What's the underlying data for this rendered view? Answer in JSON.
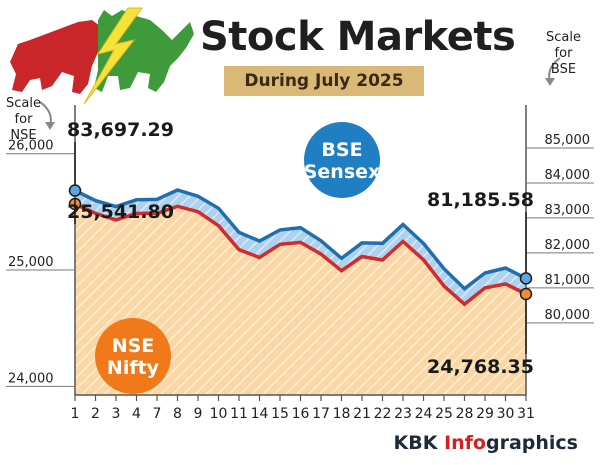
{
  "title": "Stock Markets",
  "subtitle": "During July 2025",
  "scale_notes": {
    "nse": [
      "Scale",
      "for",
      "NSE"
    ],
    "bse": [
      "Scale",
      "for",
      "BSE"
    ]
  },
  "footer": {
    "brand": "KBK",
    "accent": "Info",
    "rest": "graphics"
  },
  "colors": {
    "bse_line": "#1f6fae",
    "bse_fill": "#aed1ee",
    "nse_line": "#d42a2a",
    "nse_fill": "#fad8a6",
    "bse_badge": "#1f7fc2",
    "nse_badge": "#f07a1a"
  },
  "chart_data": {
    "type": "area",
    "x": [
      "1",
      "2",
      "3",
      "4",
      "7",
      "8",
      "9",
      "10",
      "11",
      "14",
      "15",
      "16",
      "17",
      "18",
      "21",
      "22",
      "23",
      "24",
      "25",
      "28",
      "29",
      "30",
      "31"
    ],
    "xlabel": "",
    "axes": {
      "left": {
        "label": "Scale for NSE",
        "ticks": [
          24000,
          25000,
          26000
        ],
        "tick_labels": [
          "24,000",
          "25,000",
          "26,000"
        ],
        "range": [
          23900,
          26350
        ]
      },
      "right": {
        "label": "Scale for BSE",
        "ticks": [
          80000,
          81000,
          82000,
          83000,
          84000,
          85000
        ],
        "tick_labels": [
          "80,000",
          "81,000",
          "82,000",
          "83,000",
          "84,000",
          "85,000"
        ],
        "range": [
          77850,
          86000
        ]
      }
    },
    "series": [
      {
        "name": "BSE Sensex",
        "axis": "right",
        "values": [
          83697.29,
          83409.69,
          83239.47,
          83432.89,
          83442.5,
          83712.51,
          83536.08,
          83190.28,
          82500.47,
          82253.46,
          82570.91,
          82634.48,
          82259.24,
          81757.73,
          82200.34,
          82186.81,
          82726.64,
          82184.17,
          81463.09,
          80891.02,
          81337.95,
          81481.86,
          81185.58
        ],
        "first_label": "83,697.29",
        "last_label": "81,185.58"
      },
      {
        "name": "NSE Nifty",
        "axis": "left",
        "values": [
          25541.8,
          25461.0,
          25405.3,
          25461.3,
          25461.0,
          25522.5,
          25476.1,
          25355.25,
          25149.85,
          25082.3,
          25195.8,
          25212.05,
          25111.45,
          24968.4,
          25090.7,
          25060.9,
          25219.9,
          25062.1,
          24837.0,
          24680.9,
          24821.1,
          24855.05,
          24768.35
        ],
        "first_label": "25,541.80",
        "last_label": "24,768.35"
      }
    ],
    "badges": [
      {
        "series": "BSE Sensex",
        "lines": [
          "BSE",
          "Sensex"
        ]
      },
      {
        "series": "NSE Nifty",
        "lines": [
          "NSE",
          "Nifty"
        ]
      }
    ],
    "grid": "none"
  }
}
